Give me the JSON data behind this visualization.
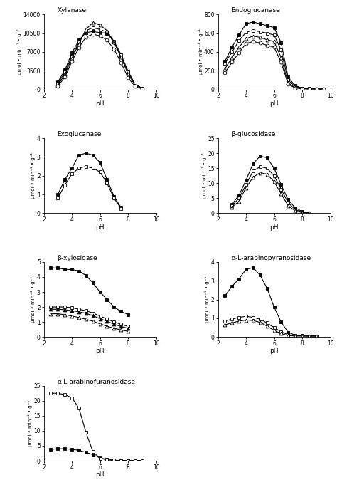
{
  "plots": [
    {
      "title": "Xylanase",
      "ylim": [
        0,
        14000
      ],
      "yticks": [
        0,
        3500,
        7000,
        10500,
        14000
      ],
      "series": [
        {
          "ph": [
            3.0,
            3.5,
            4.0,
            4.5,
            5.0,
            5.5,
            6.0,
            6.5,
            7.0,
            7.5,
            8.0,
            8.5,
            9.0
          ],
          "vals": [
            1400,
            3600,
            6800,
            9200,
            10600,
            10800,
            10600,
            10500,
            8800,
            6200,
            3200,
            900,
            200
          ],
          "marker": "s",
          "filled": true
        },
        {
          "ph": [
            3.0,
            3.5,
            4.0,
            4.5,
            5.0,
            5.5,
            6.0,
            6.5,
            7.0,
            7.5,
            8.0,
            8.5,
            9.0
          ],
          "vals": [
            1100,
            3200,
            6200,
            8800,
            11000,
            11500,
            11200,
            10700,
            9000,
            6500,
            3400,
            1000,
            250
          ],
          "marker": "s",
          "filled": false
        },
        {
          "ph": [
            3.0,
            3.5,
            4.0,
            4.5,
            5.0,
            5.5,
            6.0,
            6.5,
            7.0,
            7.5,
            8.0,
            8.5,
            9.0
          ],
          "vals": [
            800,
            2800,
            5800,
            8500,
            11200,
            12500,
            12000,
            11000,
            8800,
            6000,
            2900,
            800,
            200
          ],
          "marker": "^",
          "filled": false
        },
        {
          "ph": [
            3.0,
            3.5,
            4.0,
            4.5,
            5.0,
            5.5,
            6.0,
            6.5,
            7.0,
            7.5,
            8.0,
            8.5,
            9.0
          ],
          "vals": [
            600,
            2300,
            5200,
            7800,
            9800,
            10300,
            10000,
            9200,
            7500,
            5000,
            2200,
            550,
            100
          ],
          "marker": "o",
          "filled": false
        }
      ]
    },
    {
      "title": "Endoglucanase",
      "ylim": [
        0,
        800
      ],
      "yticks": [
        0,
        200,
        400,
        600,
        800
      ],
      "series": [
        {
          "ph": [
            2.5,
            3.0,
            3.5,
            4.0,
            4.5,
            5.0,
            5.5,
            6.0,
            6.5,
            7.0,
            7.5,
            8.0,
            8.5,
            9.0,
            9.5
          ],
          "vals": [
            300,
            450,
            580,
            700,
            720,
            700,
            680,
            660,
            500,
            130,
            40,
            15,
            10,
            8,
            5
          ],
          "marker": "s",
          "filled": true
        },
        {
          "ph": [
            2.5,
            3.0,
            3.5,
            4.0,
            4.5,
            5.0,
            5.5,
            6.0,
            6.5,
            7.0,
            7.5,
            8.0,
            8.5,
            9.0,
            9.5
          ],
          "vals": [
            280,
            400,
            520,
            610,
            630,
            615,
            600,
            580,
            420,
            100,
            30,
            12,
            8,
            6,
            5
          ],
          "marker": "s",
          "filled": false
        },
        {
          "ph": [
            2.5,
            3.0,
            3.5,
            4.0,
            4.5,
            5.0,
            5.5,
            6.0,
            6.5,
            7.0,
            7.5,
            8.0,
            8.5,
            9.0,
            9.5
          ],
          "vals": [
            220,
            340,
            450,
            540,
            570,
            555,
            530,
            510,
            340,
            70,
            20,
            8,
            5,
            5,
            5
          ],
          "marker": "^",
          "filled": false
        },
        {
          "ph": [
            2.5,
            3.0,
            3.5,
            4.0,
            4.5,
            5.0,
            5.5,
            6.0,
            6.5,
            7.0,
            7.5,
            8.0,
            8.5,
            9.0,
            9.5
          ],
          "vals": [
            180,
            290,
            390,
            490,
            510,
            495,
            470,
            450,
            290,
            55,
            15,
            8,
            5,
            5,
            5
          ],
          "marker": "o",
          "filled": false
        }
      ]
    },
    {
      "title": "Exoglucanase",
      "ylim": [
        0,
        4
      ],
      "yticks": [
        0,
        1,
        2,
        3,
        4
      ],
      "series": [
        {
          "ph": [
            3.0,
            3.5,
            4.0,
            4.5,
            5.0,
            5.5,
            6.0,
            6.5,
            7.0,
            7.5
          ],
          "vals": [
            1.0,
            1.8,
            2.4,
            3.1,
            3.2,
            3.1,
            2.7,
            1.8,
            0.9,
            0.3
          ],
          "marker": "s",
          "filled": true
        },
        {
          "ph": [
            3.0,
            3.5,
            4.0,
            4.5,
            5.0,
            5.5,
            6.0,
            6.5,
            7.0,
            7.5
          ],
          "vals": [
            0.8,
            1.5,
            2.1,
            2.4,
            2.5,
            2.4,
            2.2,
            1.6,
            0.8,
            0.25
          ],
          "marker": "s",
          "filled": false
        }
      ]
    },
    {
      "title": "β-glucosidase",
      "ylim": [
        0,
        25
      ],
      "yticks": [
        0,
        5,
        10,
        15,
        20,
        25
      ],
      "series": [
        {
          "ph": [
            3.0,
            3.5,
            4.0,
            4.5,
            5.0,
            5.5,
            6.0,
            6.5,
            7.0,
            7.5,
            8.0,
            8.5
          ],
          "vals": [
            3.0,
            6.0,
            11.0,
            16.5,
            19.0,
            18.5,
            15.0,
            9.5,
            4.5,
            1.8,
            0.6,
            0.2
          ],
          "marker": "s",
          "filled": true
        },
        {
          "ph": [
            3.0,
            3.5,
            4.0,
            4.5,
            5.0,
            5.5,
            6.0,
            6.5,
            7.0,
            7.5,
            8.0,
            8.5
          ],
          "vals": [
            2.5,
            5.0,
            9.5,
            14.0,
            15.5,
            15.0,
            12.5,
            8.0,
            3.5,
            1.2,
            0.4,
            0.1
          ],
          "marker": "s",
          "filled": false
        },
        {
          "ph": [
            3.0,
            3.5,
            4.0,
            4.5,
            5.0,
            5.5,
            6.0,
            6.5,
            7.0,
            7.5,
            8.0,
            8.5
          ],
          "vals": [
            2.0,
            4.0,
            8.5,
            12.0,
            13.5,
            13.0,
            10.5,
            6.5,
            2.5,
            0.8,
            0.2,
            0.1
          ],
          "marker": "^",
          "filled": false
        }
      ]
    },
    {
      "title": "β-xylosidase",
      "ylim": [
        0,
        5
      ],
      "yticks": [
        0,
        1,
        2,
        3,
        4,
        5
      ],
      "series": [
        {
          "ph": [
            2.5,
            3.0,
            3.5,
            4.0,
            4.5,
            5.0,
            5.5,
            6.0,
            6.5,
            7.0,
            7.5,
            8.0
          ],
          "vals": [
            4.6,
            4.6,
            4.5,
            4.5,
            4.4,
            4.1,
            3.6,
            3.0,
            2.5,
            2.0,
            1.7,
            1.5
          ],
          "marker": "s",
          "filled": true
        },
        {
          "ph": [
            2.5,
            3.0,
            3.5,
            4.0,
            4.5,
            5.0,
            5.5,
            6.0,
            6.5,
            7.0,
            7.5,
            8.0
          ],
          "vals": [
            2.0,
            2.0,
            2.0,
            1.95,
            1.85,
            1.75,
            1.6,
            1.4,
            1.2,
            1.0,
            0.85,
            0.7
          ],
          "marker": "s",
          "filled": false
        },
        {
          "ph": [
            2.5,
            3.0,
            3.5,
            4.0,
            4.5,
            5.0,
            5.5,
            6.0,
            6.5,
            7.0,
            7.5,
            8.0
          ],
          "vals": [
            1.85,
            1.85,
            1.82,
            1.75,
            1.68,
            1.58,
            1.42,
            1.22,
            1.05,
            0.85,
            0.7,
            0.58
          ],
          "marker": "^",
          "filled": true
        },
        {
          "ph": [
            2.5,
            3.0,
            3.5,
            4.0,
            4.5,
            5.0,
            5.5,
            6.0,
            6.5,
            7.0,
            7.5,
            8.0
          ],
          "vals": [
            1.55,
            1.55,
            1.48,
            1.4,
            1.3,
            1.18,
            1.05,
            0.88,
            0.72,
            0.58,
            0.47,
            0.38
          ],
          "marker": "^",
          "filled": false
        }
      ]
    },
    {
      "title": "α-L-arabinopyranosidase",
      "ylim": [
        0,
        4
      ],
      "yticks": [
        0,
        1,
        2,
        3,
        4
      ],
      "series": [
        {
          "ph": [
            2.5,
            3.0,
            3.5,
            4.0,
            4.5,
            5.0,
            5.5,
            6.0,
            6.5,
            7.0,
            7.5,
            8.0,
            8.5,
            9.0
          ],
          "vals": [
            2.2,
            2.7,
            3.1,
            3.6,
            3.7,
            3.3,
            2.6,
            1.6,
            0.8,
            0.25,
            0.1,
            0.07,
            0.05,
            0.05
          ],
          "marker": "s",
          "filled": true
        },
        {
          "ph": [
            2.5,
            3.0,
            3.5,
            4.0,
            4.5,
            5.0,
            5.5,
            6.0,
            6.5,
            7.0,
            7.5,
            8.0,
            8.5,
            9.0
          ],
          "vals": [
            0.85,
            0.95,
            1.05,
            1.1,
            1.05,
            0.95,
            0.75,
            0.5,
            0.28,
            0.12,
            0.08,
            0.06,
            0.05,
            0.05
          ],
          "marker": "s",
          "filled": false
        },
        {
          "ph": [
            2.5,
            3.0,
            3.5,
            4.0,
            4.5,
            5.0,
            5.5,
            6.0,
            6.5,
            7.0,
            7.5,
            8.0,
            8.5,
            9.0
          ],
          "vals": [
            0.65,
            0.75,
            0.85,
            0.9,
            0.88,
            0.78,
            0.58,
            0.35,
            0.18,
            0.08,
            0.05,
            0.05,
            0.05,
            0.05
          ],
          "marker": "^",
          "filled": false
        }
      ]
    },
    {
      "title": "α-L-arabinofuranosidase",
      "ylim": [
        0,
        25
      ],
      "yticks": [
        0,
        5,
        10,
        15,
        20,
        25
      ],
      "series": [
        {
          "ph": [
            2.5,
            3.0,
            3.5,
            4.0,
            4.5,
            5.0,
            5.5,
            6.0,
            6.5,
            7.0,
            7.5,
            8.0,
            8.5,
            9.0
          ],
          "vals": [
            3.8,
            4.0,
            4.0,
            3.8,
            3.5,
            2.8,
            2.0,
            1.0,
            0.4,
            0.15,
            0.08,
            0.05,
            0.05,
            0.05
          ],
          "marker": "s",
          "filled": true
        },
        {
          "ph": [
            2.5,
            3.0,
            3.5,
            4.0,
            4.5,
            5.0,
            5.5,
            6.0,
            6.5,
            7.0,
            7.5,
            8.0,
            8.5,
            9.0
          ],
          "vals": [
            22.5,
            22.5,
            22.0,
            21.0,
            17.5,
            9.5,
            3.0,
            0.8,
            0.3,
            0.15,
            0.08,
            0.05,
            0.05,
            0.05
          ],
          "marker": "s",
          "filled": false
        }
      ]
    }
  ],
  "ylabel": "μmol • min⁻¹ • g⁻¹",
  "xlabel": "pH",
  "xlim": [
    2,
    10
  ],
  "xticks": [
    2,
    4,
    6,
    8,
    10
  ],
  "marker_size": 3.5,
  "line_width": 0.8
}
